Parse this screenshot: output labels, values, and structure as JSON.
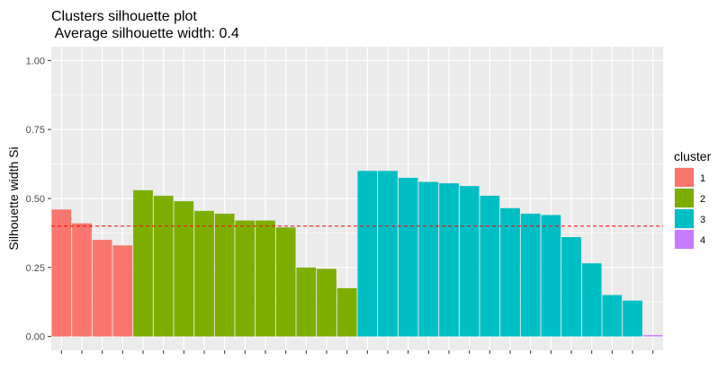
{
  "chart_data": {
    "type": "bar",
    "title": "Clusters silhouette plot",
    "subtitle": " Average silhouette width: 0.4",
    "xlabel": "",
    "ylabel": "Silhouette width Si",
    "ylim": [
      -0.05,
      1.05
    ],
    "yticks": [
      0.0,
      0.25,
      0.5,
      0.75,
      1.0
    ],
    "ytick_labels": [
      "0.00",
      "0.25",
      "0.50",
      "0.75",
      "1.00"
    ],
    "average_line": 0.4,
    "grid": true,
    "legend_position": "right",
    "legend_title": "cluster",
    "series": [
      {
        "name": "1",
        "color": "#F8766D",
        "values": [
          0.46,
          0.41,
          0.35,
          0.33
        ]
      },
      {
        "name": "2",
        "color": "#7CAE00",
        "values": [
          0.53,
          0.51,
          0.49,
          0.455,
          0.445,
          0.42,
          0.42,
          0.395,
          0.25,
          0.245,
          0.175
        ]
      },
      {
        "name": "3",
        "color": "#00BFC4",
        "values": [
          0.6,
          0.6,
          0.575,
          0.56,
          0.555,
          0.545,
          0.51,
          0.465,
          0.445,
          0.44,
          0.36,
          0.265,
          0.15,
          0.13
        ]
      },
      {
        "name": "4",
        "color": "#C77CFF",
        "values": [
          0.005
        ]
      }
    ],
    "average_line_color": "#FF0000",
    "panel_background": "#EBEBEB"
  }
}
